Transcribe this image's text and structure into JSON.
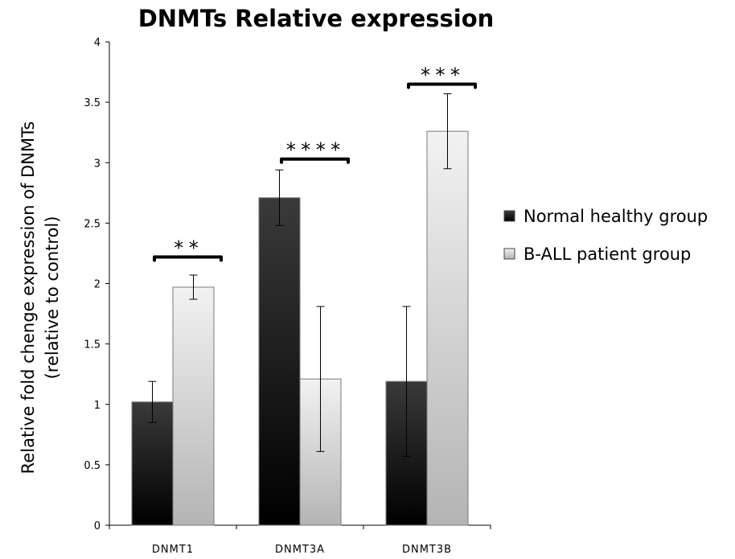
{
  "chart_data": {
    "type": "bar",
    "title": "DNMTs Relative expression",
    "ylabel_line1": "Relative fold chenge expression of DNMTs",
    "ylabel_line2": "(relative to control)",
    "xlabel": "",
    "categories": [
      "DNMT1",
      "DNMT3A",
      "DNMT3B"
    ],
    "ylim": [
      0,
      4
    ],
    "yticks": [
      0,
      0.5,
      1,
      1.5,
      2,
      2.5,
      3,
      3.5,
      4
    ],
    "grid": false,
    "legend_position": "right",
    "series": [
      {
        "name": "Normal healthy group",
        "values": [
          1.02,
          2.71,
          1.19
        ],
        "errors": [
          0.17,
          0.23,
          0.62
        ],
        "color_top": "#3a3a3a",
        "color_bottom": "#000000"
      },
      {
        "name": "B-ALL patient group",
        "values": [
          1.97,
          1.21,
          3.26
        ],
        "errors": [
          0.1,
          0.6,
          0.31
        ],
        "color_top": "#f2f2f2",
        "color_bottom": "#b4b4b4"
      }
    ],
    "significance": [
      {
        "category": "DNMT1",
        "label": "**",
        "y": 2.22
      },
      {
        "category": "DNMT3A",
        "label": "****",
        "y": 3.03
      },
      {
        "category": "DNMT3B",
        "label": "***",
        "y": 3.65
      }
    ]
  }
}
